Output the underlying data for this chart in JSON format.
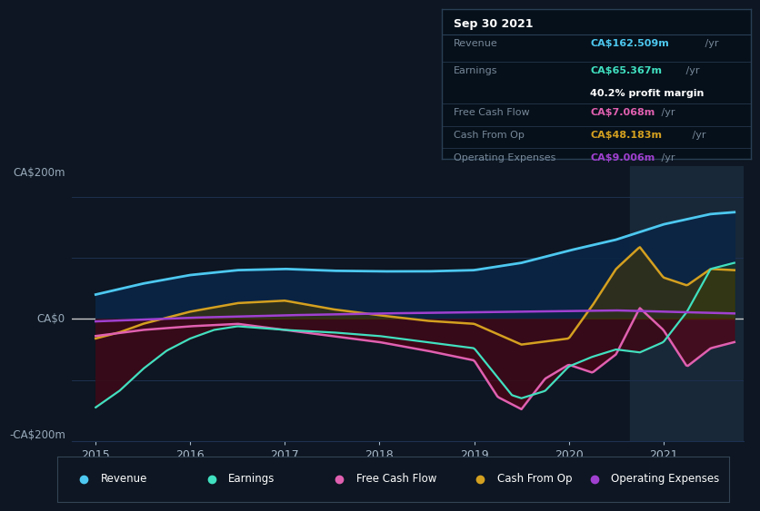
{
  "background_color": "#0d1622",
  "plot_bg_color": "#0d1622",
  "grid_color": "#1e3050",
  "zero_line_color": "#cccccc",
  "ylim": [
    -200,
    250
  ],
  "xlim": [
    2014.75,
    2021.85
  ],
  "ylabel_top": "CA$200m",
  "ylabel_zero": "CA$0",
  "ylabel_neg": "-CA$200m",
  "xticks": [
    2015,
    2016,
    2017,
    2018,
    2019,
    2020,
    2021
  ],
  "tooltip": {
    "date": "Sep 30 2021",
    "revenue_label": "Revenue",
    "revenue_value": "CA$162.509m",
    "revenue_color": "#4dc8f0",
    "earnings_label": "Earnings",
    "earnings_value": "CA$65.367m",
    "earnings_color": "#40e0c0",
    "margin_text": "40.2% profit margin",
    "fcf_label": "Free Cash Flow",
    "fcf_value": "CA$7.068m",
    "fcf_color": "#e060b0",
    "cashop_label": "Cash From Op",
    "cashop_value": "CA$48.183m",
    "cashop_color": "#d4a020",
    "opex_label": "Operating Expenses",
    "opex_value": "CA$9.006m",
    "opex_color": "#a040d0"
  },
  "legend_items": [
    {
      "label": "Revenue",
      "color": "#4dc8f0"
    },
    {
      "label": "Earnings",
      "color": "#40e0c0"
    },
    {
      "label": "Free Cash Flow",
      "color": "#e060b0"
    },
    {
      "label": "Cash From Op",
      "color": "#d4a020"
    },
    {
      "label": "Operating Expenses",
      "color": "#a040d0"
    }
  ],
  "highlight_x_start": 2020.65,
  "highlight_x_end": 2021.85,
  "highlight_color": "#182838"
}
